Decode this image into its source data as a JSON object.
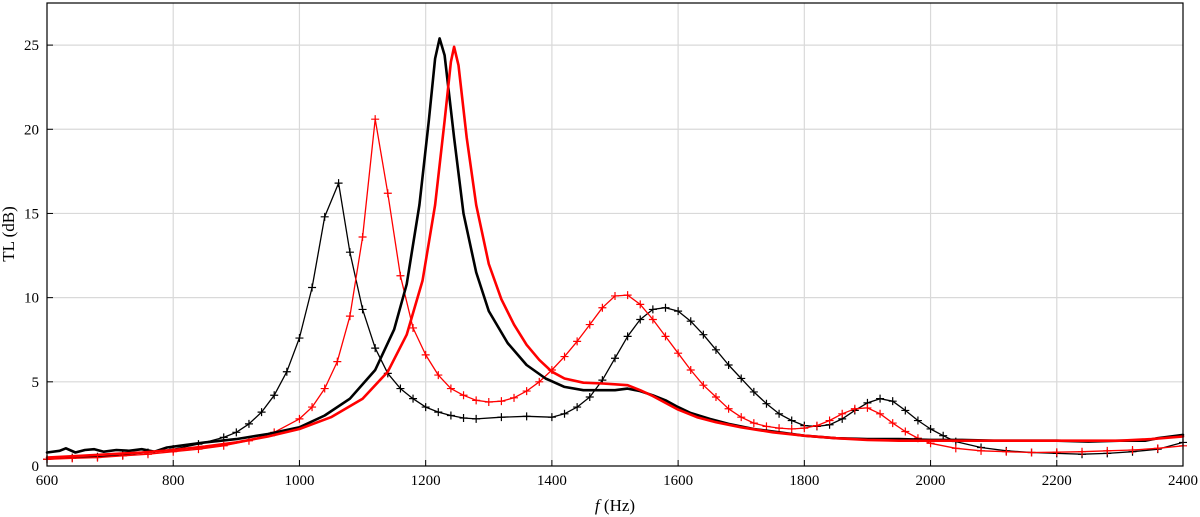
{
  "chart_data": {
    "type": "line",
    "xlabel_italic": "f",
    "xlabel_rest": " (Hz)",
    "ylabel": "TL (dB)",
    "xlim": [
      600,
      2400
    ],
    "ylim": [
      0,
      27.5
    ],
    "xticks": [
      600,
      800,
      1000,
      1200,
      1400,
      1600,
      1800,
      2000,
      2200,
      2400
    ],
    "yticks": [
      0,
      5,
      10,
      15,
      20,
      25
    ],
    "grid": true,
    "legend": "none",
    "series": [
      {
        "color": "#000000",
        "style": "line-plus",
        "points": [
          [
            600,
            0.4
          ],
          [
            640,
            0.5
          ],
          [
            680,
            0.55
          ],
          [
            720,
            0.65
          ],
          [
            760,
            0.8
          ],
          [
            800,
            1.0
          ],
          [
            840,
            1.3
          ],
          [
            880,
            1.7
          ],
          [
            900,
            2.0
          ],
          [
            920,
            2.5
          ],
          [
            940,
            3.2
          ],
          [
            960,
            4.2
          ],
          [
            980,
            5.6
          ],
          [
            1000,
            7.6
          ],
          [
            1020,
            10.6
          ],
          [
            1040,
            14.8
          ],
          [
            1062,
            16.8
          ],
          [
            1080,
            12.7
          ],
          [
            1100,
            9.3
          ],
          [
            1120,
            7.0
          ],
          [
            1140,
            5.5
          ],
          [
            1160,
            4.6
          ],
          [
            1180,
            4.0
          ],
          [
            1200,
            3.5
          ],
          [
            1220,
            3.2
          ],
          [
            1240,
            3.0
          ],
          [
            1260,
            2.85
          ],
          [
            1280,
            2.8
          ],
          [
            1320,
            2.9
          ],
          [
            1360,
            2.95
          ],
          [
            1400,
            2.9
          ],
          [
            1420,
            3.1
          ],
          [
            1440,
            3.5
          ],
          [
            1460,
            4.1
          ],
          [
            1480,
            5.1
          ],
          [
            1500,
            6.4
          ],
          [
            1520,
            7.7
          ],
          [
            1540,
            8.7
          ],
          [
            1560,
            9.3
          ],
          [
            1580,
            9.4
          ],
          [
            1600,
            9.2
          ],
          [
            1620,
            8.6
          ],
          [
            1640,
            7.8
          ],
          [
            1660,
            6.9
          ],
          [
            1680,
            6.0
          ],
          [
            1700,
            5.2
          ],
          [
            1720,
            4.4
          ],
          [
            1740,
            3.7
          ],
          [
            1760,
            3.1
          ],
          [
            1780,
            2.7
          ],
          [
            1800,
            2.4
          ],
          [
            1820,
            2.35
          ],
          [
            1840,
            2.45
          ],
          [
            1860,
            2.8
          ],
          [
            1880,
            3.3
          ],
          [
            1900,
            3.75
          ],
          [
            1920,
            4.0
          ],
          [
            1940,
            3.85
          ],
          [
            1960,
            3.3
          ],
          [
            1980,
            2.7
          ],
          [
            2000,
            2.2
          ],
          [
            2020,
            1.8
          ],
          [
            2040,
            1.45
          ],
          [
            2080,
            1.1
          ],
          [
            2120,
            0.9
          ],
          [
            2160,
            0.8
          ],
          [
            2200,
            0.75
          ],
          [
            2240,
            0.7
          ],
          [
            2280,
            0.75
          ],
          [
            2320,
            0.85
          ],
          [
            2360,
            1.0
          ],
          [
            2400,
            1.4
          ]
        ]
      },
      {
        "color": "#ff0000",
        "style": "line-plus",
        "points": [
          [
            600,
            0.4
          ],
          [
            640,
            0.45
          ],
          [
            680,
            0.5
          ],
          [
            720,
            0.6
          ],
          [
            760,
            0.7
          ],
          [
            800,
            0.85
          ],
          [
            840,
            1.0
          ],
          [
            880,
            1.2
          ],
          [
            920,
            1.5
          ],
          [
            960,
            2.0
          ],
          [
            1000,
            2.8
          ],
          [
            1020,
            3.5
          ],
          [
            1040,
            4.6
          ],
          [
            1060,
            6.2
          ],
          [
            1080,
            8.9
          ],
          [
            1100,
            13.6
          ],
          [
            1120,
            20.6
          ],
          [
            1140,
            16.2
          ],
          [
            1160,
            11.3
          ],
          [
            1180,
            8.2
          ],
          [
            1200,
            6.6
          ],
          [
            1220,
            5.4
          ],
          [
            1240,
            4.6
          ],
          [
            1260,
            4.2
          ],
          [
            1280,
            3.9
          ],
          [
            1300,
            3.8
          ],
          [
            1320,
            3.85
          ],
          [
            1340,
            4.05
          ],
          [
            1360,
            4.45
          ],
          [
            1380,
            5.0
          ],
          [
            1400,
            5.7
          ],
          [
            1420,
            6.5
          ],
          [
            1440,
            7.4
          ],
          [
            1460,
            8.4
          ],
          [
            1480,
            9.4
          ],
          [
            1500,
            10.1
          ],
          [
            1520,
            10.15
          ],
          [
            1540,
            9.6
          ],
          [
            1560,
            8.7
          ],
          [
            1580,
            7.7
          ],
          [
            1600,
            6.7
          ],
          [
            1620,
            5.7
          ],
          [
            1640,
            4.8
          ],
          [
            1660,
            4.1
          ],
          [
            1680,
            3.4
          ],
          [
            1700,
            2.9
          ],
          [
            1720,
            2.55
          ],
          [
            1740,
            2.35
          ],
          [
            1760,
            2.25
          ],
          [
            1780,
            2.2
          ],
          [
            1800,
            2.25
          ],
          [
            1820,
            2.4
          ],
          [
            1840,
            2.7
          ],
          [
            1860,
            3.1
          ],
          [
            1880,
            3.4
          ],
          [
            1900,
            3.45
          ],
          [
            1920,
            3.1
          ],
          [
            1940,
            2.55
          ],
          [
            1960,
            2.05
          ],
          [
            1980,
            1.65
          ],
          [
            2000,
            1.35
          ],
          [
            2040,
            1.05
          ],
          [
            2080,
            0.9
          ],
          [
            2120,
            0.85
          ],
          [
            2160,
            0.8
          ],
          [
            2200,
            0.82
          ],
          [
            2240,
            0.85
          ],
          [
            2280,
            0.9
          ],
          [
            2320,
            0.95
          ],
          [
            2360,
            1.05
          ],
          [
            2400,
            1.2
          ]
        ]
      },
      {
        "color": "#000000",
        "style": "thick-line",
        "points": [
          [
            600,
            0.8
          ],
          [
            620,
            0.9
          ],
          [
            630,
            1.05
          ],
          [
            645,
            0.8
          ],
          [
            660,
            0.95
          ],
          [
            675,
            1.0
          ],
          [
            690,
            0.85
          ],
          [
            710,
            0.95
          ],
          [
            730,
            0.9
          ],
          [
            750,
            1.0
          ],
          [
            770,
            0.85
          ],
          [
            790,
            1.1
          ],
          [
            810,
            1.2
          ],
          [
            850,
            1.4
          ],
          [
            900,
            1.6
          ],
          [
            950,
            1.9
          ],
          [
            1000,
            2.3
          ],
          [
            1040,
            3.0
          ],
          [
            1080,
            4.0
          ],
          [
            1120,
            5.7
          ],
          [
            1150,
            8.1
          ],
          [
            1170,
            10.8
          ],
          [
            1190,
            15.5
          ],
          [
            1205,
            20.5
          ],
          [
            1215,
            24.2
          ],
          [
            1222,
            25.4
          ],
          [
            1230,
            24.4
          ],
          [
            1245,
            19.5
          ],
          [
            1260,
            15.0
          ],
          [
            1280,
            11.5
          ],
          [
            1300,
            9.2
          ],
          [
            1330,
            7.3
          ],
          [
            1360,
            6.0
          ],
          [
            1390,
            5.2
          ],
          [
            1420,
            4.7
          ],
          [
            1450,
            4.5
          ],
          [
            1480,
            4.5
          ],
          [
            1500,
            4.5
          ],
          [
            1520,
            4.6
          ],
          [
            1540,
            4.45
          ],
          [
            1560,
            4.2
          ],
          [
            1580,
            3.9
          ],
          [
            1600,
            3.5
          ],
          [
            1620,
            3.15
          ],
          [
            1650,
            2.8
          ],
          [
            1680,
            2.5
          ],
          [
            1720,
            2.2
          ],
          [
            1760,
            2.0
          ],
          [
            1800,
            1.8
          ],
          [
            1850,
            1.65
          ],
          [
            1900,
            1.6
          ],
          [
            1950,
            1.6
          ],
          [
            2000,
            1.55
          ],
          [
            2050,
            1.55
          ],
          [
            2100,
            1.5
          ],
          [
            2150,
            1.5
          ],
          [
            2200,
            1.5
          ],
          [
            2250,
            1.45
          ],
          [
            2300,
            1.5
          ],
          [
            2340,
            1.5
          ],
          [
            2360,
            1.65
          ],
          [
            2400,
            1.85
          ]
        ]
      },
      {
        "color": "#ff0000",
        "style": "thick-line",
        "points": [
          [
            600,
            0.5
          ],
          [
            650,
            0.6
          ],
          [
            700,
            0.7
          ],
          [
            750,
            0.8
          ],
          [
            800,
            0.95
          ],
          [
            850,
            1.15
          ],
          [
            900,
            1.4
          ],
          [
            950,
            1.75
          ],
          [
            1000,
            2.2
          ],
          [
            1050,
            2.9
          ],
          [
            1100,
            4.0
          ],
          [
            1140,
            5.6
          ],
          [
            1170,
            7.8
          ],
          [
            1195,
            11.0
          ],
          [
            1215,
            15.5
          ],
          [
            1230,
            20.5
          ],
          [
            1240,
            24.0
          ],
          [
            1245,
            24.9
          ],
          [
            1252,
            23.8
          ],
          [
            1265,
            19.5
          ],
          [
            1280,
            15.5
          ],
          [
            1300,
            12.0
          ],
          [
            1320,
            9.9
          ],
          [
            1340,
            8.4
          ],
          [
            1360,
            7.2
          ],
          [
            1380,
            6.3
          ],
          [
            1400,
            5.6
          ],
          [
            1420,
            5.2
          ],
          [
            1450,
            4.95
          ],
          [
            1480,
            4.9
          ],
          [
            1500,
            4.85
          ],
          [
            1520,
            4.8
          ],
          [
            1540,
            4.5
          ],
          [
            1560,
            4.15
          ],
          [
            1580,
            3.75
          ],
          [
            1600,
            3.35
          ],
          [
            1630,
            2.9
          ],
          [
            1660,
            2.6
          ],
          [
            1700,
            2.3
          ],
          [
            1750,
            2.0
          ],
          [
            1800,
            1.8
          ],
          [
            1850,
            1.65
          ],
          [
            1900,
            1.55
          ],
          [
            1950,
            1.5
          ],
          [
            2000,
            1.5
          ],
          [
            2050,
            1.5
          ],
          [
            2100,
            1.5
          ],
          [
            2150,
            1.5
          ],
          [
            2200,
            1.5
          ],
          [
            2250,
            1.5
          ],
          [
            2300,
            1.5
          ],
          [
            2350,
            1.6
          ],
          [
            2400,
            1.75
          ]
        ]
      }
    ]
  }
}
